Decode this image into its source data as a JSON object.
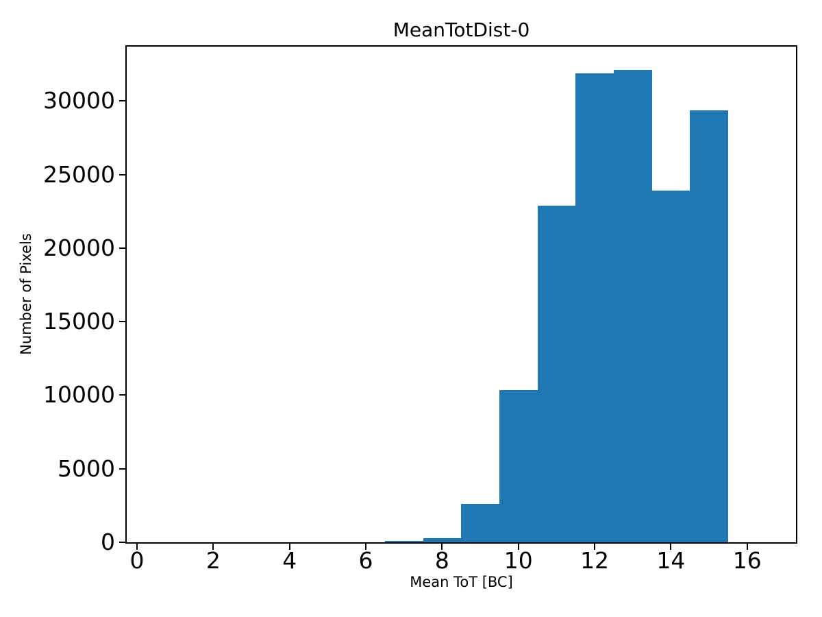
{
  "chart_data": {
    "type": "bar",
    "title": "MeanTotDist-0",
    "xlabel": "Mean ToT [BC]",
    "ylabel": "Number of Pixels",
    "bar_color": "#1f77b4",
    "background_color": "#ffffff",
    "axis_color": "#000000",
    "grid": false,
    "legend": null,
    "bin_width": 1,
    "bin_centers": [
      1,
      2,
      3,
      4,
      5,
      6,
      7,
      8,
      9,
      10,
      11,
      12,
      13,
      14,
      15,
      16
    ],
    "bin_edges": [
      0.5,
      1.5,
      2.5,
      3.5,
      4.5,
      5.5,
      6.5,
      7.5,
      8.5,
      9.5,
      10.5,
      11.5,
      12.5,
      13.5,
      14.5,
      15.5,
      16.5
    ],
    "counts": [
      0,
      0,
      0,
      0,
      0,
      0,
      110,
      300,
      2620,
      10330,
      22870,
      31890,
      32100,
      23920,
      29360,
      0
    ],
    "xlim": [
      -0.27,
      17.28
    ],
    "ylim": [
      0,
      33700
    ],
    "xticks": [
      0,
      2,
      4,
      6,
      8,
      10,
      12,
      14,
      16
    ],
    "yticks": [
      0,
      5000,
      10000,
      15000,
      20000,
      25000,
      30000
    ]
  }
}
